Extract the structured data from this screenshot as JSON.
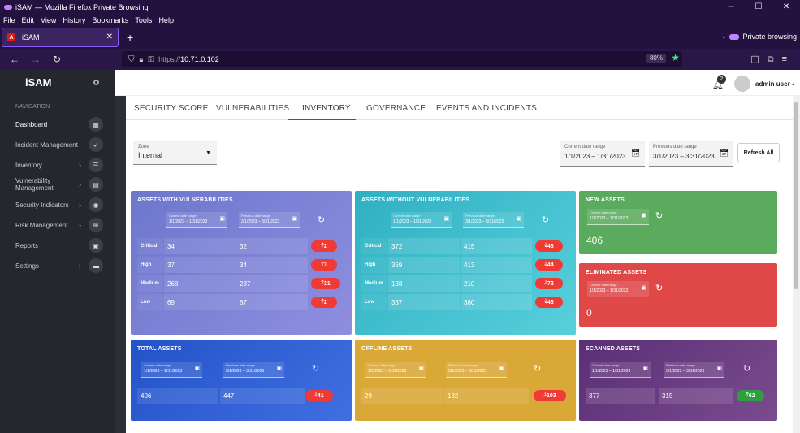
{
  "browser": {
    "title": "iSAM — Mozilla Firefox Private Browsing",
    "menu": [
      "File",
      "Edit",
      "View",
      "History",
      "Bookmarks",
      "Tools",
      "Help"
    ],
    "tab_label": "iSAM",
    "private_label": "Private browsing",
    "url_prefix": "https://",
    "url_host": "10.71.0.102",
    "zoom": "80%"
  },
  "sidebar": {
    "brand": "iSAM",
    "nav_header": "NAVIGATION",
    "items": [
      {
        "label": "Dashboard"
      },
      {
        "label": "Incident Management"
      },
      {
        "label": "Inventory"
      },
      {
        "label": "Vulnerability Management"
      },
      {
        "label": "Security Indicators"
      },
      {
        "label": "Risk Management"
      },
      {
        "label": "Reports"
      },
      {
        "label": "Settings"
      }
    ]
  },
  "header": {
    "notification_count": "2",
    "user": "admin user"
  },
  "tabs": [
    "SECURITY SCORE",
    "VULNERABILITIES",
    "INVENTORY",
    "GOVERNANCE",
    "EVENTS AND INCIDENTS"
  ],
  "filters": {
    "zone_label": "Zone",
    "zone_value": "Internal",
    "current_label": "Current date range",
    "current_value": "1/1/2023 – 1/31/2023",
    "previous_label": "Previous date range",
    "previous_value": "3/1/2023 – 3/31/2023",
    "refresh_all": "Refresh All"
  },
  "mini_dates": {
    "current_label": "Current date range",
    "current_start": "1/1/2023",
    "current_end": "1/31/2023",
    "previous_label": "Previous date range",
    "previous_start": "3/1/2023",
    "previous_end": "3/31/2023"
  },
  "cards": {
    "with_vuln": {
      "title": "ASSETS WITH VULNERABILITIES",
      "rows": [
        {
          "label": "Critical",
          "current": "34",
          "previous": "32",
          "change": "2",
          "dir": "up"
        },
        {
          "label": "High",
          "current": "37",
          "previous": "34",
          "change": "3",
          "dir": "up"
        },
        {
          "label": "Medium",
          "current": "268",
          "previous": "237",
          "change": "31",
          "dir": "up"
        },
        {
          "label": "Low",
          "current": "69",
          "previous": "67",
          "change": "2",
          "dir": "up"
        }
      ]
    },
    "without_vuln": {
      "title": "ASSETS WITHOUT VULNERABILITIES",
      "rows": [
        {
          "label": "Critical",
          "current": "372",
          "previous": "415",
          "change": "43",
          "dir": "down"
        },
        {
          "label": "High",
          "current": "369",
          "previous": "413",
          "change": "44",
          "dir": "down"
        },
        {
          "label": "Medium",
          "current": "138",
          "previous": "210",
          "change": "72",
          "dir": "down"
        },
        {
          "label": "Low",
          "current": "337",
          "previous": "380",
          "change": "43",
          "dir": "down"
        }
      ]
    },
    "new_assets": {
      "title": "NEW ASSETS",
      "value": "406"
    },
    "eliminated": {
      "title": "ELIMINATED ASSETS",
      "value": "0"
    },
    "total": {
      "title": "TOTAL ASSETS",
      "current": "406",
      "previous": "447",
      "change": "41",
      "dir": "down"
    },
    "offline": {
      "title": "OFFLINE ASSETS",
      "current": "29",
      "previous": "132",
      "change": "103",
      "dir": "down"
    },
    "scanned": {
      "title": "SCANNED ASSETS",
      "current": "377",
      "previous": "315",
      "change": "62",
      "dir": "up"
    }
  },
  "colors": {
    "with_vuln": "#7c86d6",
    "without_vuln": "#3fbccb",
    "new_assets": "#5bab5e",
    "eliminated": "#e04848",
    "total": "#2c5bd0",
    "offline": "#d9a836",
    "scanned": "#6a3d82",
    "red_badge": "#ef3b36",
    "green_badge": "#2e9e3e"
  }
}
